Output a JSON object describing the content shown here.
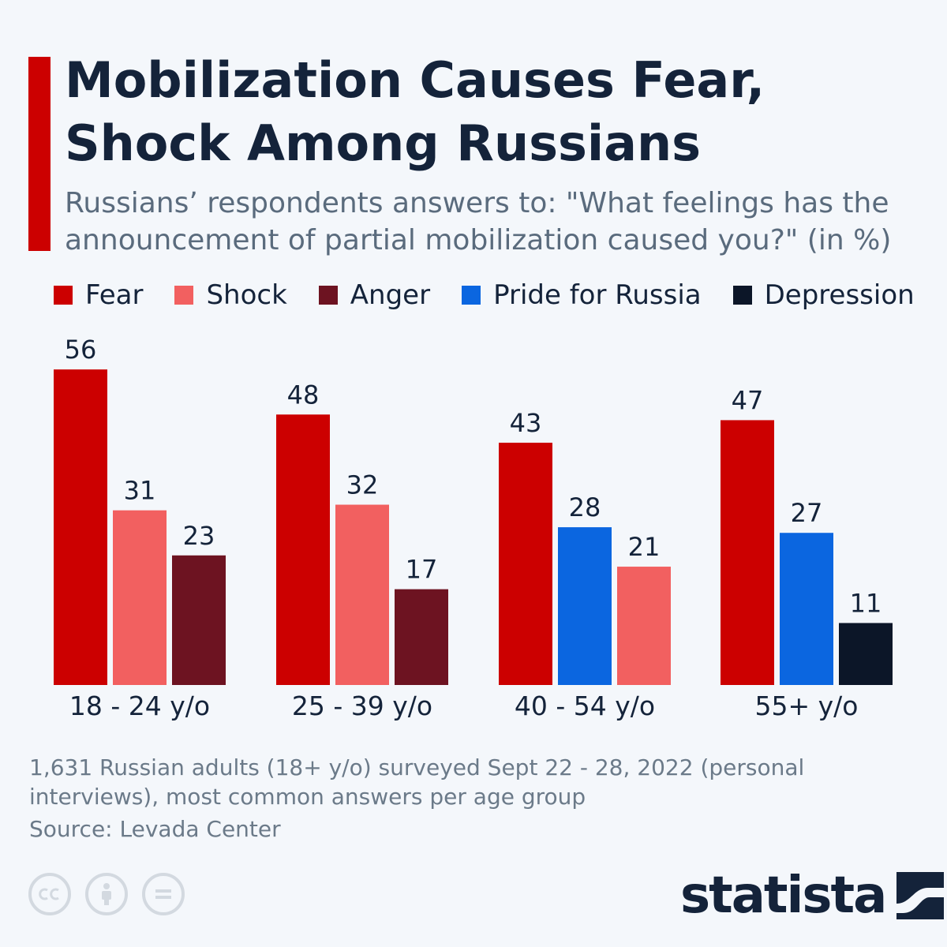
{
  "header": {
    "title": "Mobilization Causes Fear, Shock Among Russians",
    "subtitle": "Russians’ respondents answers to: \"What feelings has the announcement of partial mobilization caused you?\" (in %)"
  },
  "legend": [
    {
      "label": "Fear",
      "color": "#cc0000"
    },
    {
      "label": "Shock",
      "color": "#f26060"
    },
    {
      "label": "Anger",
      "color": "#6d1321"
    },
    {
      "label": "Pride for Russia",
      "color": "#0b66e0"
    },
    {
      "label": "Depression",
      "color": "#0c1628"
    }
  ],
  "chart_data": {
    "type": "bar",
    "title": "Mobilization Causes Fear, Shock Among Russians",
    "ylabel": "%",
    "ylim": [
      0,
      56
    ],
    "grid": false,
    "categories": [
      "18 - 24 y/o",
      "25 - 39 y/o",
      "40 - 54 y/o",
      "55+ y/o"
    ],
    "groups": [
      {
        "category": "18 - 24 y/o",
        "bars": [
          {
            "series": "Fear",
            "value": 56,
            "color": "#cc0000"
          },
          {
            "series": "Shock",
            "value": 31,
            "color": "#f26060"
          },
          {
            "series": "Anger",
            "value": 23,
            "color": "#6d1321"
          }
        ]
      },
      {
        "category": "25 - 39 y/o",
        "bars": [
          {
            "series": "Fear",
            "value": 48,
            "color": "#cc0000"
          },
          {
            "series": "Shock",
            "value": 32,
            "color": "#f26060"
          },
          {
            "series": "Anger",
            "value": 17,
            "color": "#6d1321"
          }
        ]
      },
      {
        "category": "40 - 54 y/o",
        "bars": [
          {
            "series": "Fear",
            "value": 43,
            "color": "#cc0000"
          },
          {
            "series": "Pride for Russia",
            "value": 28,
            "color": "#0b66e0"
          },
          {
            "series": "Shock",
            "value": 21,
            "color": "#f26060"
          }
        ]
      },
      {
        "category": "55+ y/o",
        "bars": [
          {
            "series": "Fear",
            "value": 47,
            "color": "#cc0000"
          },
          {
            "series": "Pride for Russia",
            "value": 27,
            "color": "#0b66e0"
          },
          {
            "series": "Depression",
            "value": 11,
            "color": "#0c1628"
          }
        ]
      }
    ]
  },
  "footer": {
    "note": "1,631 Russian adults (18+ y/o) surveyed Sept 22 - 28, 2022 (personal interviews), most common answers per age group",
    "source": "Source: Levada Center",
    "brand": "statista",
    "license_icons": [
      "cc-icon",
      "attribution-icon",
      "no-derivatives-icon"
    ]
  }
}
